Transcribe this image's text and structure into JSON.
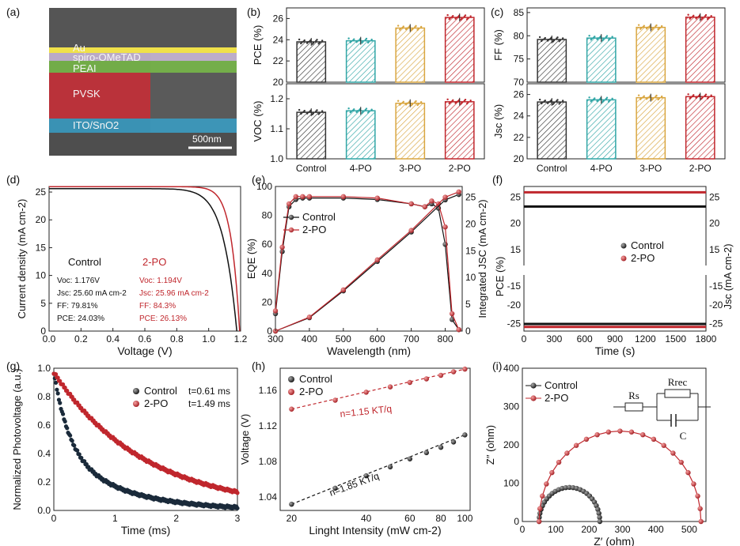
{
  "sem": {
    "panel_label": "(a)",
    "layers": [
      {
        "name": "Au",
        "color": "#f0e14a"
      },
      {
        "name": "spiro-OMeTAD",
        "color": "#d9c5e8"
      },
      {
        "name": "PEAI",
        "color": "#7bbf4a"
      },
      {
        "name": "PVSK",
        "color": "#d0303a"
      },
      {
        "name": "ITO/SnO2",
        "color": "#3aa7d2"
      }
    ],
    "scale_bar": "500nm"
  },
  "panel_labels": {
    "b": "(b)",
    "c": "(c)",
    "d": "(d)",
    "e": "(e)",
    "f": "(f)",
    "g": "(g)",
    "h": "(h)",
    "i": "(i)"
  },
  "colors": {
    "control": "#333333",
    "po4": "#31a6a6",
    "po3": "#d9a640",
    "po2": "#c0272d"
  },
  "chart_data": [
    {
      "id": "b_top",
      "type": "bar",
      "ylabel": "PCE (%)",
      "categories": [
        "Control",
        "4-PO",
        "3-PO",
        "2-PO"
      ],
      "values": [
        23.8,
        23.9,
        25.1,
        26.1
      ],
      "ylim": [
        20,
        27
      ],
      "yticks": [
        "20",
        "22",
        "24",
        "26"
      ]
    },
    {
      "id": "b_bottom",
      "type": "bar",
      "ylabel": "VOC (%)",
      "categories": [
        "Control",
        "4-PO",
        "3-PO",
        "2-PO"
      ],
      "values": [
        1.155,
        1.16,
        1.185,
        1.19
      ],
      "ylim": [
        1.0,
        1.25
      ],
      "yticks": [
        "1.0",
        "1.1",
        "1.2"
      ]
    },
    {
      "id": "c_top",
      "type": "bar",
      "ylabel": "FF (%)",
      "categories": [
        "Control",
        "4-PO",
        "3-PO",
        "2-PO"
      ],
      "values": [
        79.2,
        79.5,
        81.8,
        84.0
      ],
      "ylim": [
        70,
        86
      ],
      "yticks": [
        "70",
        "75",
        "80",
        "85"
      ]
    },
    {
      "id": "c_bottom",
      "type": "bar",
      "ylabel": "Jsc (%)",
      "categories": [
        "Control",
        "4-PO",
        "3-PO",
        "2-PO"
      ],
      "values": [
        25.3,
        25.5,
        25.7,
        25.8
      ],
      "ylim": [
        20,
        27
      ],
      "yticks": [
        "20",
        "22",
        "24",
        "26"
      ]
    },
    {
      "id": "d",
      "type": "line",
      "xlabel": "Voltage (V)",
      "ylabel": "Current density (mA cm-2)",
      "xlim": [
        0,
        1.2
      ],
      "ylim": [
        0,
        26
      ],
      "xticks": [
        "0.0",
        "0.2",
        "0.4",
        "0.6",
        "0.8",
        "1.0",
        "1.2"
      ],
      "yticks": [
        "0",
        "5",
        "10",
        "15",
        "20",
        "25"
      ],
      "series": [
        {
          "name": "Control",
          "voc": 1.176,
          "jsc": 25.6,
          "ff": 79.81,
          "pce": 24.03
        },
        {
          "name": "2-PO",
          "voc": 1.194,
          "jsc": 25.96,
          "ff": 84.3,
          "pce": 26.13
        }
      ],
      "annotations": {
        "control": [
          "Control",
          "Voc: 1.176V",
          "Jsc: 25.60 mA cm-2",
          "FF: 79.81%",
          "PCE: 24.03%"
        ],
        "po2": [
          "2-PO",
          "Voc: 1.194V",
          "Jsc: 25.96 mA cm-2",
          "FF: 84.3%",
          "PCE: 26.13%"
        ]
      }
    },
    {
      "id": "e",
      "type": "line",
      "xlabel": "Wavelength (nm)",
      "ylabel": "EQE (%)",
      "y2label": "Integrated JSC (mA cm-2)",
      "xlim": [
        300,
        850
      ],
      "ylim": [
        0,
        100
      ],
      "y2lim": [
        0,
        27
      ],
      "xticks": [
        "300",
        "400",
        "500",
        "600",
        "700",
        "800"
      ],
      "yticks": [
        "0",
        "20",
        "40",
        "60",
        "80",
        "100"
      ],
      "y2ticks": [
        "0",
        "5",
        "10",
        "15",
        "20",
        "25"
      ],
      "series": [
        {
          "name": "Control",
          "x": [
            300,
            320,
            340,
            360,
            380,
            400,
            500,
            600,
            700,
            740,
            760,
            780,
            800,
            820,
            840
          ],
          "y": [
            12,
            55,
            86,
            91,
            92,
            92,
            92,
            91,
            88,
            86,
            88,
            85,
            60,
            8,
            1
          ]
        },
        {
          "name": "2-PO",
          "x": [
            300,
            320,
            340,
            360,
            380,
            400,
            500,
            600,
            700,
            740,
            760,
            780,
            800,
            820,
            840
          ],
          "y": [
            14,
            58,
            88,
            93,
            93,
            93,
            93,
            92,
            88,
            86,
            90,
            88,
            72,
            12,
            1
          ]
        }
      ],
      "integrated": [
        {
          "name": "Control",
          "x": [
            300,
            400,
            500,
            600,
            700,
            800,
            840
          ],
          "y": [
            0,
            2.5,
            7.5,
            13,
            18.5,
            24.5,
            25.5
          ]
        },
        {
          "name": "2-PO",
          "x": [
            300,
            400,
            500,
            600,
            700,
            800,
            840
          ],
          "y": [
            0,
            2.6,
            7.7,
            13.3,
            18.8,
            25,
            26
          ]
        }
      ]
    },
    {
      "id": "f",
      "type": "scatter",
      "xlabel": "Time (s)",
      "ylabel": "PCE (%)",
      "y2label": "Jsc (mA cm-2)",
      "xlim": [
        0,
        1800
      ],
      "xticks": [
        "0",
        "300",
        "600",
        "900",
        "1200",
        "1500",
        "1800"
      ],
      "yticks_top": [
        "15",
        "20",
        "25"
      ],
      "yticks_bottom": [
        "-25",
        "-20",
        "-15"
      ],
      "y2ticks_top": [
        "15",
        "20",
        "25"
      ],
      "y2ticks_bottom": [
        "-25",
        "-20",
        "-15"
      ],
      "series": [
        {
          "name": "Control",
          "pce": 23.2,
          "jsc": -25.1
        },
        {
          "name": "2-PO",
          "pce": 25.9,
          "jsc": -25.9
        }
      ]
    },
    {
      "id": "g",
      "type": "scatter",
      "xlabel": "Time (ms)",
      "ylabel": "Normalized Photovoltage (a.u.)",
      "xlim": [
        0,
        3
      ],
      "ylim": [
        0,
        1.0
      ],
      "xticks": [
        "0",
        "1",
        "2",
        "3"
      ],
      "yticks": [
        "0.0",
        "0.2",
        "0.4",
        "0.6",
        "0.8",
        "1.0"
      ],
      "series": [
        {
          "name": "Control",
          "tau": 0.61,
          "label": "t=0.61 ms"
        },
        {
          "name": "2-PO",
          "tau": 1.49,
          "label": "t=1.49 ms"
        }
      ]
    },
    {
      "id": "h",
      "type": "scatter",
      "xlabel": "Linght Intensity (mW cm-2)",
      "ylabel": "Voltage (V)",
      "xscale": "log",
      "xlim": [
        18,
        105
      ],
      "ylim": [
        1.025,
        1.185
      ],
      "xticks": [
        "20",
        "40",
        "60",
        "80",
        "100"
      ],
      "yticks": [
        "1.04",
        "1.08",
        "1.12",
        "1.16"
      ],
      "series": [
        {
          "name": "Control",
          "x": [
            20,
            30,
            40,
            50,
            60,
            70,
            80,
            90,
            100
          ],
          "y": [
            1.032,
            1.05,
            1.064,
            1.074,
            1.083,
            1.09,
            1.096,
            1.102,
            1.11
          ]
        },
        {
          "name": "2-PO",
          "x": [
            20,
            30,
            40,
            50,
            60,
            70,
            80,
            90,
            100
          ],
          "y": [
            1.139,
            1.149,
            1.158,
            1.164,
            1.169,
            1.173,
            1.177,
            1.181,
            1.184
          ]
        }
      ],
      "annotations": [
        "n=1.15 KT/q",
        "n=1.85 KT/q"
      ]
    },
    {
      "id": "i",
      "type": "scatter",
      "xlabel": "Z′ (ohm)",
      "ylabel": "Z″ (ohm)",
      "xlim": [
        0,
        550
      ],
      "ylim": [
        0,
        400
      ],
      "xticks": [
        "0",
        "100",
        "200",
        "300",
        "400",
        "500"
      ],
      "yticks": [
        "0",
        "100",
        "200",
        "300",
        "400"
      ],
      "series": [
        {
          "name": "Control",
          "start": 50,
          "end": 232,
          "peak": 89
        },
        {
          "name": "2-PO",
          "start": 50,
          "end": 535,
          "peak": 236
        }
      ],
      "circuit": {
        "rs": "Rs",
        "rrec": "Rrec",
        "c": "C"
      }
    }
  ]
}
